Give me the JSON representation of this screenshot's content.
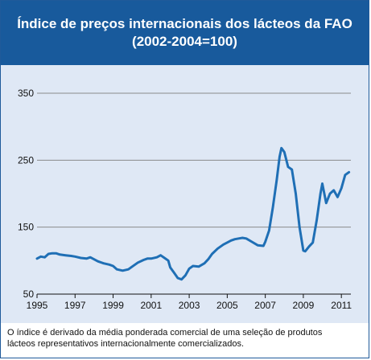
{
  "title": {
    "line1": "Índice de preços internacionais dos lácteos da FAO",
    "line2": "(2002-2004=100)"
  },
  "caption": {
    "line1": "O índice é derivado da média ponderada comercial de uma seleção de produtos",
    "line2": "lácteos representativos internacionalmente comercializados."
  },
  "colors": {
    "header": "#185a9c",
    "panel": "#dfe8f5",
    "line": "#1f6fb5",
    "grid": "#8a8a8a"
  },
  "chart_data": {
    "type": "line",
    "title": "Índice de preços internacionais dos lácteos da FAO",
    "subtitle": "(2002-2004=100)",
    "xlabel": "",
    "ylabel": "",
    "xlim": [
      1995,
      2011.5
    ],
    "ylim": [
      50,
      350
    ],
    "yticks": [
      50,
      150,
      250,
      350
    ],
    "xticks": [
      1995,
      1997,
      1999,
      2001,
      2003,
      2005,
      2007,
      2009,
      2011
    ],
    "grid": "horizontal",
    "series": [
      {
        "x": [
          1995.0,
          1995.2,
          1995.4,
          1995.6,
          1995.8,
          1996.0,
          1996.2,
          1996.5,
          1996.8,
          1997.0,
          1997.3,
          1997.6,
          1997.8,
          1998.0,
          1998.2,
          1998.5,
          1998.8,
          1999.0,
          1999.2,
          1999.5,
          1999.8,
          2000.0,
          2000.3,
          2000.6,
          2000.8,
          2001.0,
          2001.3,
          2001.5,
          2001.7,
          2001.9,
          2002.0,
          2002.2,
          2002.4,
          2002.6,
          2002.8,
          2003.0,
          2003.2,
          2003.5,
          2003.8,
          2004.0,
          2004.2,
          2004.5,
          2004.8,
          2005.0,
          2005.2,
          2005.4,
          2005.6,
          2005.8,
          2006.0,
          2006.3,
          2006.6,
          2006.9,
          2007.0,
          2007.2,
          2007.4,
          2007.6,
          2007.75,
          2007.85,
          2008.0,
          2008.2,
          2008.4,
          2008.6,
          2008.8,
          2009.0,
          2009.1,
          2009.3,
          2009.5,
          2009.7,
          2009.9,
          2010.0,
          2010.2,
          2010.4,
          2010.6,
          2010.8,
          2011.0,
          2011.2,
          2011.4
        ],
        "values": [
          103,
          106,
          105,
          110,
          111,
          111,
          109,
          108,
          107,
          106,
          104,
          103,
          105,
          102,
          99,
          96,
          94,
          92,
          87,
          85,
          87,
          91,
          97,
          101,
          103,
          103,
          105,
          108,
          104,
          100,
          90,
          82,
          74,
          72,
          78,
          88,
          92,
          91,
          96,
          102,
          110,
          118,
          124,
          127,
          130,
          132,
          133,
          134,
          133,
          128,
          123,
          122,
          128,
          145,
          180,
          220,
          255,
          268,
          262,
          240,
          236,
          200,
          150,
          115,
          114,
          121,
          127,
          160,
          200,
          215,
          186,
          200,
          205,
          195,
          208,
          228,
          232
        ]
      }
    ]
  }
}
